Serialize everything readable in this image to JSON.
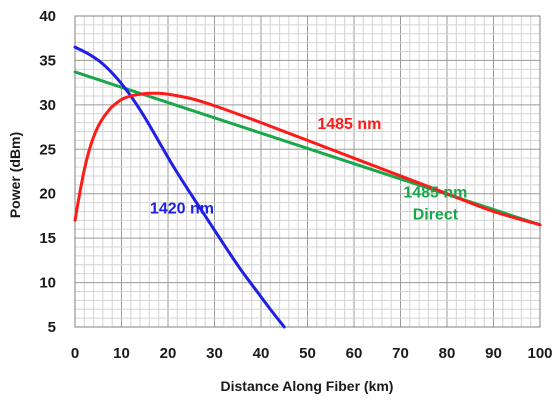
{
  "chart_data": {
    "type": "line",
    "title": "",
    "xlabel": "Distance Along Fiber (km)",
    "ylabel": "Power (dBm)",
    "xlim": [
      0,
      100
    ],
    "ylim": [
      5,
      40
    ],
    "x_ticks": [
      "0",
      "10",
      "20",
      "30",
      "40",
      "50",
      "60",
      "70",
      "80",
      "90",
      "100"
    ],
    "y_ticks": [
      "5",
      "10",
      "15",
      "20",
      "25",
      "30",
      "35",
      "40"
    ],
    "grid": true,
    "legend": "none",
    "series": [
      {
        "name": "1420 nm",
        "color": "#1f1fe6",
        "points": [
          [
            0,
            36.5
          ],
          [
            3,
            35.7
          ],
          [
            6,
            34.6
          ],
          [
            9,
            33.0
          ],
          [
            12,
            31.0
          ],
          [
            15,
            28.6
          ],
          [
            18,
            25.9
          ],
          [
            21,
            23.2
          ],
          [
            24,
            20.7
          ],
          [
            27,
            18.3
          ],
          [
            30,
            15.9
          ],
          [
            33,
            13.5
          ],
          [
            36,
            11.2
          ],
          [
            39,
            9.1
          ],
          [
            42,
            7.0
          ],
          [
            45,
            5.0
          ]
        ]
      },
      {
        "name": "1485 nm",
        "color": "#ff1a1a",
        "points": [
          [
            0,
            17.0
          ],
          [
            1,
            20.0
          ],
          [
            2,
            22.7
          ],
          [
            3,
            24.8
          ],
          [
            4,
            26.4
          ],
          [
            5,
            27.6
          ],
          [
            6,
            28.5
          ],
          [
            7,
            29.2
          ],
          [
            8,
            29.8
          ],
          [
            10,
            30.6
          ],
          [
            12,
            31.0
          ],
          [
            14,
            31.2
          ],
          [
            16,
            31.3
          ],
          [
            18,
            31.3
          ],
          [
            20,
            31.2
          ],
          [
            25,
            30.7
          ],
          [
            30,
            29.9
          ],
          [
            40,
            28.0
          ],
          [
            50,
            26.0
          ],
          [
            60,
            24.0
          ],
          [
            70,
            22.0
          ],
          [
            80,
            20.0
          ],
          [
            90,
            18.0
          ],
          [
            100,
            16.5
          ]
        ]
      },
      {
        "name": "1485 nm Direct",
        "color": "#1aa64a",
        "points": [
          [
            0,
            33.7
          ],
          [
            100,
            16.5
          ]
        ]
      }
    ],
    "annotations": [
      {
        "series": "1420 nm",
        "lines": [
          "1420 nm"
        ],
        "color": "#1f1fe6",
        "x": 23,
        "y": 17.8
      },
      {
        "series": "1485 nm",
        "lines": [
          "1485 nm"
        ],
        "color": "#ff1a1a",
        "x": 59,
        "y": 27.3
      },
      {
        "series": "1485 nm Direct",
        "lines": [
          "1485 nm",
          "Direct"
        ],
        "color": "#1aa64a",
        "x": 77.5,
        "y": 19.6
      }
    ]
  }
}
